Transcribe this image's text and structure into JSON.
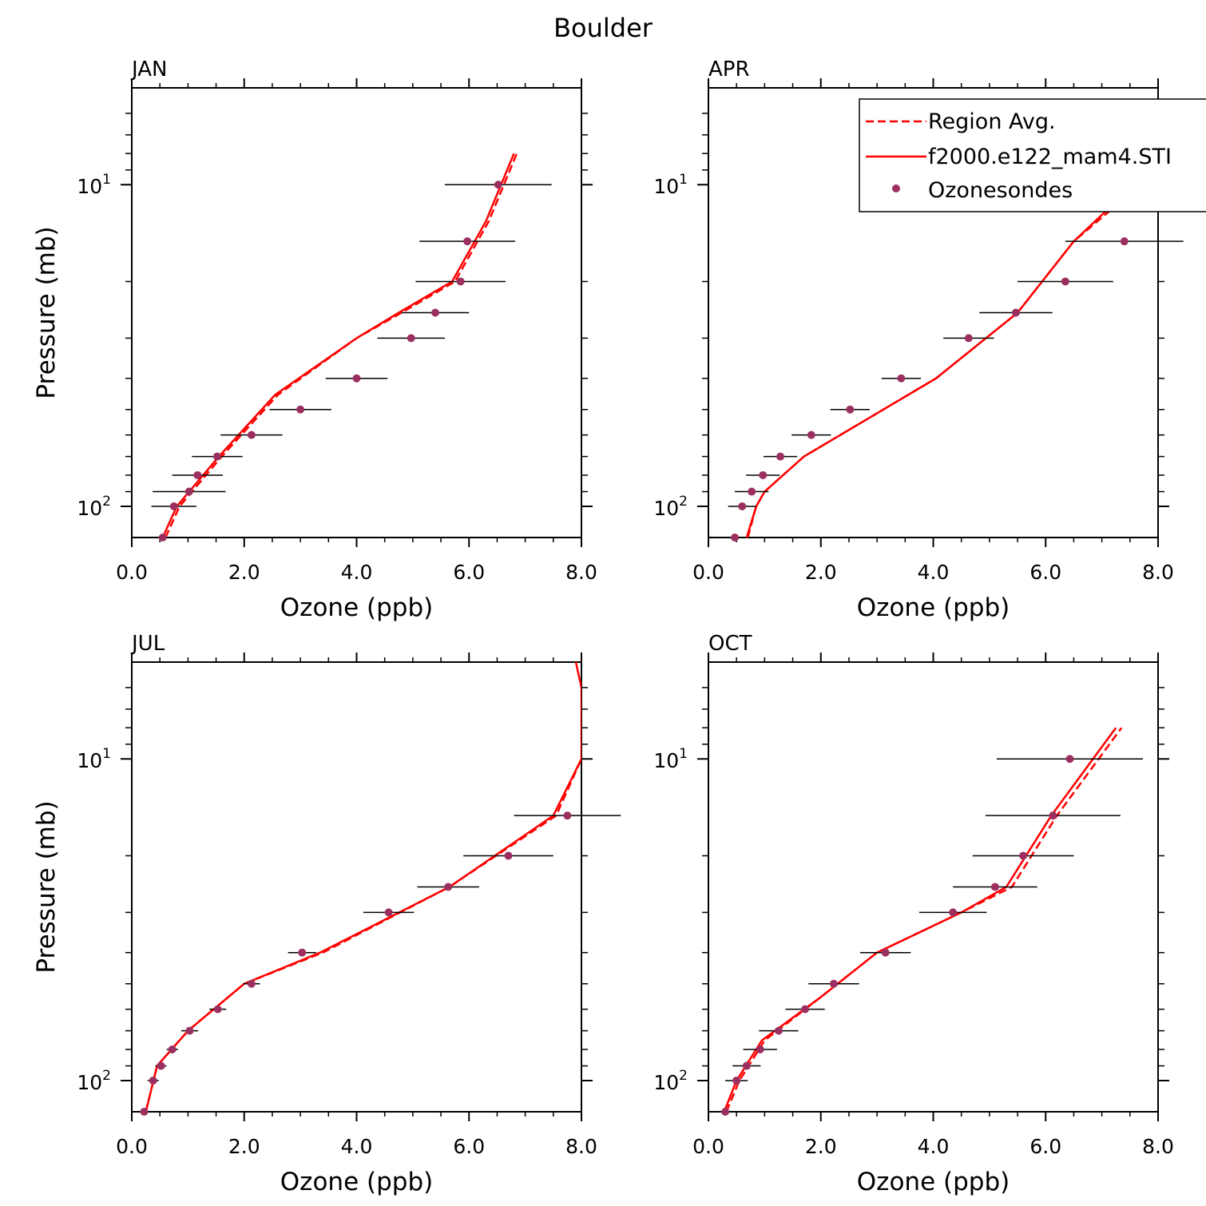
{
  "title": "Boulder",
  "colors": {
    "model": "#ff0000",
    "sonde_marker": "#9b3060",
    "axis": "#000000"
  },
  "legend": {
    "entries": [
      {
        "label": "Region Avg.",
        "style": "dashed"
      },
      {
        "label": "f2000.e122_mam4.STI",
        "style": "solid"
      },
      {
        "label": "Ozonesondes",
        "style": "marker"
      }
    ]
  },
  "chart_data": [
    {
      "type": "line",
      "panel_label": "JAN",
      "xlabel": "Ozone (ppb)",
      "ylabel": "Pressure (mb)",
      "xlim": [
        0,
        8
      ],
      "ylim": [
        125,
        5
      ],
      "yscale": "log",
      "xticks": [
        "0.0",
        "2.0",
        "4.0",
        "6.0",
        "8.0"
      ],
      "yticks": [
        {
          "value": 10,
          "label": "10",
          "exp": "1"
        },
        {
          "value": 100,
          "label": "10",
          "exp": "2"
        }
      ],
      "series": [
        {
          "name": "Region Avg.",
          "style": "dashed",
          "x": [
            0.6,
            0.85,
            1.6,
            2.6,
            4.0,
            4.8,
            5.75,
            6.35,
            6.85
          ],
          "y": [
            125,
            100,
            70,
            45,
            30,
            25,
            20,
            13,
            8
          ]
        },
        {
          "name": "f2000.e122_mam4.STI",
          "style": "solid",
          "x": [
            0.55,
            0.8,
            1.55,
            2.55,
            4.0,
            4.75,
            5.7,
            6.3,
            6.8
          ],
          "y": [
            125,
            100,
            70,
            45,
            30,
            25,
            20,
            13,
            8
          ]
        },
        {
          "name": "Ozonesondes",
          "style": "marker",
          "x": [
            0.55,
            0.75,
            1.02,
            1.17,
            1.52,
            2.13,
            3.0,
            4.0,
            4.97,
            5.4,
            5.85,
            5.97,
            6.52
          ],
          "y": [
            125,
            100,
            90,
            80,
            70,
            60,
            50,
            40,
            30,
            25,
            20,
            15,
            10
          ],
          "err": [
            0,
            0.4,
            0.65,
            0.45,
            0.45,
            0.55,
            0.55,
            0.55,
            0.6,
            0.6,
            0.8,
            0.85,
            0.95
          ]
        }
      ]
    },
    {
      "type": "line",
      "panel_label": "APR",
      "xlabel": "Ozone (ppb)",
      "ylabel": "",
      "xlim": [
        0,
        8
      ],
      "ylim": [
        125,
        5
      ],
      "yscale": "log",
      "xticks": [
        "0.0",
        "2.0",
        "4.0",
        "6.0",
        "8.0"
      ],
      "yticks": [
        {
          "value": 10,
          "label": "10",
          "exp": "1"
        },
        {
          "value": 100,
          "label": "10",
          "exp": "2"
        }
      ],
      "series": [
        {
          "name": "Region Avg.",
          "style": "dashed",
          "x": [
            0.7,
            0.85,
            1.0,
            1.7,
            4.05,
            5.5,
            6.5,
            8.0
          ],
          "y": [
            125,
            100,
            90,
            70,
            40,
            25,
            15,
            9
          ]
        },
        {
          "name": "f2000.e122_mam4.STI",
          "style": "solid",
          "x": [
            0.68,
            0.85,
            1.0,
            1.7,
            4.05,
            5.5,
            6.5,
            8.0
          ],
          "y": [
            125,
            100,
            90,
            70,
            40,
            25,
            15,
            8.5
          ]
        },
        {
          "name": "Ozonesondes",
          "style": "marker",
          "x": [
            0.47,
            0.6,
            0.77,
            0.97,
            1.28,
            1.83,
            2.52,
            3.43,
            4.63,
            5.47,
            6.35,
            7.4
          ],
          "y": [
            125,
            100,
            90,
            80,
            70,
            60,
            50,
            40,
            30,
            25,
            20,
            15
          ],
          "err": [
            0,
            0.25,
            0.3,
            0.3,
            0.3,
            0.35,
            0.35,
            0.35,
            0.45,
            0.65,
            0.85,
            1.05
          ]
        }
      ]
    },
    {
      "type": "line",
      "panel_label": "JUL",
      "xlabel": "Ozone (ppb)",
      "ylabel": "Pressure (mb)",
      "xlim": [
        0,
        8
      ],
      "ylim": [
        125,
        5
      ],
      "yscale": "log",
      "xticks": [
        "0.0",
        "2.0",
        "4.0",
        "6.0",
        "8.0"
      ],
      "yticks": [
        {
          "value": 10,
          "label": "10",
          "exp": "1"
        },
        {
          "value": 100,
          "label": "10",
          "exp": "2"
        }
      ],
      "series": [
        {
          "name": "Region Avg.",
          "style": "dashed",
          "x": [
            0.25,
            0.45,
            1.0,
            2.0,
            3.4,
            5.65,
            7.55,
            8.0
          ],
          "y": [
            125,
            90,
            70,
            50,
            40,
            25,
            15,
            10
          ]
        },
        {
          "name": "f2000.e122_mam4.STI",
          "style": "solid",
          "x": [
            0.25,
            0.45,
            1.0,
            2.0,
            3.35,
            5.65,
            7.5,
            8.0,
            8.0,
            7.9
          ],
          "y": [
            125,
            90,
            70,
            50,
            40,
            25,
            15,
            10,
            6,
            5
          ]
        },
        {
          "name": "Ozonesondes",
          "style": "marker",
          "x": [
            0.22,
            0.38,
            0.52,
            0.72,
            1.03,
            1.53,
            2.13,
            3.03,
            4.57,
            5.63,
            6.7,
            7.75
          ],
          "y": [
            125,
            100,
            90,
            80,
            70,
            60,
            50,
            40,
            30,
            25,
            20,
            15
          ],
          "err": [
            0,
            0.1,
            0.1,
            0.1,
            0.15,
            0.15,
            0.15,
            0.25,
            0.45,
            0.55,
            0.8,
            0.95
          ]
        }
      ]
    },
    {
      "type": "line",
      "panel_label": "OCT",
      "xlabel": "Ozone (ppb)",
      "ylabel": "",
      "xlim": [
        0,
        8
      ],
      "ylim": [
        125,
        5
      ],
      "yscale": "log",
      "xticks": [
        "0.0",
        "2.0",
        "4.0",
        "6.0",
        "8.0"
      ],
      "yticks": [
        {
          "value": 10,
          "label": "10",
          "exp": "1"
        },
        {
          "value": 100,
          "label": "10",
          "exp": "2"
        }
      ],
      "series": [
        {
          "name": "Region Avg.",
          "style": "dashed",
          "x": [
            0.32,
            0.55,
            1.0,
            2.0,
            3.0,
            4.5,
            5.4,
            6.2,
            7.35
          ],
          "y": [
            125,
            100,
            75,
            55,
            40,
            30,
            25,
            15,
            8
          ]
        },
        {
          "name": "f2000.e122_mam4.STI",
          "style": "solid",
          "x": [
            0.28,
            0.5,
            0.95,
            2.0,
            3.0,
            4.5,
            5.3,
            6.1,
            7.25
          ],
          "y": [
            125,
            100,
            75,
            55,
            40,
            30,
            25,
            15,
            8
          ]
        },
        {
          "name": "Ozonesondes",
          "style": "marker",
          "x": [
            0.3,
            0.5,
            0.68,
            0.92,
            1.25,
            1.72,
            2.23,
            3.15,
            4.35,
            5.1,
            5.6,
            6.13,
            6.43
          ],
          "y": [
            125,
            100,
            90,
            80,
            70,
            60,
            50,
            40,
            30,
            25,
            20,
            15,
            10
          ],
          "err": [
            0,
            0.2,
            0.25,
            0.3,
            0.35,
            0.35,
            0.45,
            0.45,
            0.6,
            0.75,
            0.9,
            1.2,
            1.3
          ]
        }
      ]
    }
  ]
}
